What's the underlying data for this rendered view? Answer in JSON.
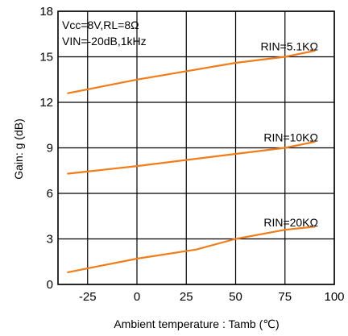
{
  "chart_data": {
    "type": "line",
    "title": "",
    "xlabel": "Ambient temperature : Tamb (℃)",
    "ylabel": "Gain: g (dB)",
    "xlim": [
      -40,
      100
    ],
    "ylim": [
      0,
      18
    ],
    "xticks": [
      -25,
      0,
      25,
      50,
      75,
      100
    ],
    "yticks": [
      0,
      3,
      6,
      9,
      12,
      15,
      18
    ],
    "grid": true,
    "legend": "none",
    "line_color": "#F07D1A",
    "annotations": {
      "line1": "Vcc=8V,RL=8Ω",
      "line2": "VIN=-20dB,1kHz"
    },
    "series": [
      {
        "name": "RIN=5.1KΩ",
        "x": [
          -35,
          0,
          50,
          75,
          90
        ],
        "y": [
          12.6,
          13.5,
          14.6,
          15.0,
          15.4
        ]
      },
      {
        "name": "RIN=10KΩ",
        "x": [
          -35,
          0,
          50,
          75,
          90
        ],
        "y": [
          7.3,
          7.8,
          8.6,
          9.0,
          9.4
        ]
      },
      {
        "name": "RIN=20KΩ",
        "x": [
          -35,
          0,
          30,
          50,
          75,
          90
        ],
        "y": [
          0.8,
          1.7,
          2.3,
          3.0,
          3.6,
          3.8
        ]
      }
    ]
  }
}
